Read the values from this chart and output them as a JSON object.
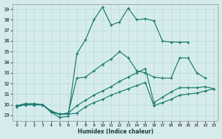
{
  "xlabel": "Humidex (Indice chaleur)",
  "background_color": "#d6ecec",
  "line_color": "#1a7a6e",
  "grid_color": "#b8d8d8",
  "xlim": [
    -0.5,
    23.5
  ],
  "ylim": [
    28.5,
    39.5
  ],
  "lines": [
    {
      "x": [
        0,
        1,
        2,
        3,
        4,
        5,
        6,
        7,
        8,
        9,
        10,
        11,
        12,
        13,
        14,
        15,
        16,
        17,
        18,
        19,
        20
      ],
      "y": [
        29.9,
        30.1,
        30.1,
        30.0,
        29.3,
        28.8,
        28.9,
        34.8,
        36.1,
        38.0,
        39.2,
        37.5,
        37.8,
        39.1,
        38.0,
        38.1,
        37.9,
        36.0,
        35.9,
        35.9,
        35.9
      ]
    },
    {
      "x": [
        0,
        1,
        2,
        3,
        4,
        5,
        6,
        7,
        8,
        9,
        10,
        11,
        12,
        13,
        14,
        15,
        16,
        17,
        18,
        19,
        20,
        21,
        22
      ],
      "y": [
        29.9,
        30.0,
        30.0,
        30.0,
        29.3,
        29.1,
        29.2,
        32.5,
        32.6,
        33.2,
        33.8,
        34.3,
        35.0,
        34.4,
        33.2,
        33.0,
        32.6,
        32.5,
        32.5,
        34.4,
        34.4,
        33.0,
        32.5
      ]
    },
    {
      "x": [
        0,
        1,
        2,
        3,
        4,
        5,
        6,
        7,
        8,
        9,
        10,
        11,
        12,
        13,
        14,
        15,
        16,
        17,
        18,
        19,
        20,
        21,
        22,
        23
      ],
      "y": [
        29.9,
        30.0,
        30.0,
        30.0,
        29.4,
        29.1,
        29.2,
        29.9,
        30.4,
        30.9,
        31.3,
        31.7,
        32.2,
        32.6,
        33.0,
        33.4,
        30.2,
        30.7,
        31.2,
        31.6,
        31.6,
        31.6,
        31.7,
        31.5
      ]
    },
    {
      "x": [
        0,
        1,
        2,
        3,
        4,
        5,
        6,
        7,
        8,
        9,
        10,
        11,
        12,
        13,
        14,
        15,
        16,
        17,
        18,
        19,
        20,
        21,
        22,
        23
      ],
      "y": [
        29.8,
        30.0,
        30.0,
        30.0,
        29.4,
        29.1,
        29.1,
        29.2,
        29.8,
        30.2,
        30.5,
        30.9,
        31.2,
        31.5,
        31.8,
        32.1,
        29.9,
        30.2,
        30.5,
        30.9,
        31.0,
        31.1,
        31.3,
        31.5
      ]
    }
  ]
}
